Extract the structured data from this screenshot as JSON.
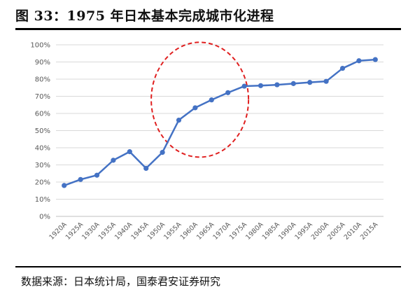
{
  "figure": {
    "title": "图 33：1975 年日本基本完成城市化进程",
    "source": "数据来源：日本统计局，国泰君安证券研究"
  },
  "chart_data": {
    "type": "line",
    "x": [
      "1920A",
      "1925A",
      "1930A",
      "1935A",
      "1940A",
      "1945A",
      "1950A",
      "1955A",
      "1960A",
      "1965A",
      "1970A",
      "1975A",
      "1980A",
      "1985A",
      "1990A",
      "1995A",
      "2000A",
      "2005A",
      "2010A",
      "2015A"
    ],
    "series": [
      {
        "values": [
          18,
          21.5,
          24,
          32.7,
          37.7,
          28,
          37.3,
          56.1,
          63.3,
          67.9,
          72.1,
          75.9,
          76.2,
          76.7,
          77.4,
          78.1,
          78.7,
          86.3,
          90.7,
          91.4
        ],
        "color": "#4472C4"
      }
    ],
    "yticks": [
      "0%",
      "10%",
      "20%",
      "30%",
      "40%",
      "50%",
      "60%",
      "70%",
      "80%",
      "90%",
      "100%"
    ],
    "ylim": [
      0,
      100
    ],
    "grid": true,
    "annotation": {
      "shape": "dashed-ellipse",
      "color": "#E02020",
      "highlights": [
        "1950A",
        "1975A"
      ]
    }
  }
}
